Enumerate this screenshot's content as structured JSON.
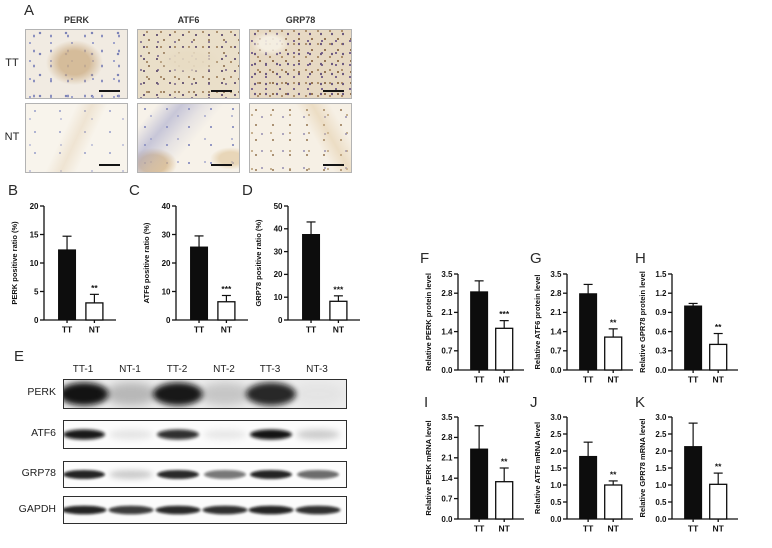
{
  "panels": {
    "A": "A",
    "B": "B",
    "C": "C",
    "D": "D",
    "E": "E",
    "F": "F",
    "G": "G",
    "H": "H",
    "I": "I",
    "J": "J",
    "K": "K"
  },
  "panel_a": {
    "columns": [
      "PERK",
      "ATF6",
      "GRP78"
    ],
    "rows": [
      "TT",
      "NT"
    ]
  },
  "panel_e": {
    "lanes": [
      "TT-1",
      "NT-1",
      "TT-2",
      "NT-2",
      "TT-3",
      "NT-3"
    ],
    "rows": [
      {
        "name": "PERK",
        "intensities": [
          0.97,
          0.42,
          0.95,
          0.3,
          0.88,
          0.06
        ]
      },
      {
        "name": "ATF6",
        "intensities": [
          0.95,
          0.16,
          0.85,
          0.14,
          0.97,
          0.34
        ]
      },
      {
        "name": "GRP78",
        "intensities": [
          0.9,
          0.35,
          0.88,
          0.55,
          0.9,
          0.6
        ]
      },
      {
        "name": "GAPDH",
        "intensities": [
          0.9,
          0.8,
          0.88,
          0.85,
          0.9,
          0.85
        ]
      }
    ]
  },
  "colors": {
    "tt_bar": "#0d0d0d",
    "nt_bar": "#ffffff",
    "axis": "#111111"
  },
  "chart_data": [
    {
      "id": "B",
      "type": "bar",
      "ylabel": "PERK positive ratio (%)",
      "categories": [
        "TT",
        "NT"
      ],
      "values": [
        12.3,
        3.0
      ],
      "error_top": [
        14.7,
        4.5
      ],
      "ylim": [
        0,
        20
      ],
      "yticks": [
        "0",
        "5",
        "10",
        "15",
        "20"
      ],
      "sig": {
        "label": "**",
        "index": 1
      },
      "size": "lg"
    },
    {
      "id": "C",
      "type": "bar",
      "ylabel": "ATF6 positive ratio (%)",
      "categories": [
        "TT",
        "NT"
      ],
      "values": [
        25.6,
        6.4
      ],
      "error_top": [
        29.5,
        8.6
      ],
      "ylim": [
        0,
        40
      ],
      "yticks": [
        "0",
        "10",
        "20",
        "30",
        "40"
      ],
      "sig": {
        "label": "***",
        "index": 1
      },
      "size": "lg"
    },
    {
      "id": "D",
      "type": "bar",
      "ylabel": "GRP78 positive ratio (%)",
      "categories": [
        "TT",
        "NT"
      ],
      "values": [
        37.5,
        8.2
      ],
      "error_top": [
        43.0,
        10.6
      ],
      "ylim": [
        0,
        50
      ],
      "yticks": [
        "0",
        "10",
        "20",
        "30",
        "40",
        "50"
      ],
      "sig": {
        "label": "***",
        "index": 1
      },
      "size": "lg"
    },
    {
      "id": "F",
      "type": "bar",
      "ylabel": "Relative PERK protein level",
      "categories": [
        "TT",
        "NT"
      ],
      "values": [
        2.85,
        1.52
      ],
      "error_top": [
        3.25,
        1.8
      ],
      "ylim": [
        0,
        3.5
      ],
      "yticks": [
        "0.0",
        "0.7",
        "1.4",
        "2.1",
        "2.8",
        "3.5"
      ],
      "sig": {
        "label": "***",
        "index": 1
      },
      "size": "sm"
    },
    {
      "id": "G",
      "type": "bar",
      "ylabel": "Relative ATF6 protein level",
      "categories": [
        "TT",
        "NT"
      ],
      "values": [
        2.78,
        1.2
      ],
      "error_top": [
        3.12,
        1.5
      ],
      "ylim": [
        0,
        3.5
      ],
      "yticks": [
        "0.0",
        "0.7",
        "1.4",
        "2.1",
        "2.8",
        "3.5"
      ],
      "sig": {
        "label": "**",
        "index": 1
      },
      "size": "sm"
    },
    {
      "id": "H",
      "type": "bar",
      "ylabel": "Relative GPR78 protein level",
      "categories": [
        "TT",
        "NT"
      ],
      "values": [
        1.0,
        0.4
      ],
      "error_top": [
        1.04,
        0.57
      ],
      "ylim": [
        0,
        1.5
      ],
      "yticks": [
        "0.0",
        "0.3",
        "0.6",
        "0.9",
        "1.2",
        "1.5"
      ],
      "sig": {
        "label": "**",
        "index": 1
      },
      "size": "sm"
    },
    {
      "id": "I",
      "type": "bar",
      "ylabel": "Relative PERK mRNA level",
      "categories": [
        "TT",
        "NT"
      ],
      "values": [
        2.4,
        1.28
      ],
      "error_top": [
        3.2,
        1.75
      ],
      "ylim": [
        0,
        3.5
      ],
      "yticks": [
        "0.0",
        "0.7",
        "1.4",
        "2.1",
        "2.8",
        "3.5"
      ],
      "sig": {
        "label": "**",
        "index": 1
      },
      "size": "md"
    },
    {
      "id": "J",
      "type": "bar",
      "ylabel": "Relative ATF6 mRNA level",
      "categories": [
        "TT",
        "NT"
      ],
      "values": [
        1.84,
        1.0
      ],
      "error_top": [
        2.26,
        1.12
      ],
      "ylim": [
        0,
        3.0
      ],
      "yticks": [
        "0.0",
        "0.5",
        "1.0",
        "1.5",
        "2.0",
        "2.5",
        "3.0"
      ],
      "sig": {
        "label": "**",
        "index": 1
      },
      "size": "md"
    },
    {
      "id": "K",
      "type": "bar",
      "ylabel": "Relative GPR78 mRNA level",
      "categories": [
        "TT",
        "NT"
      ],
      "values": [
        2.13,
        1.02
      ],
      "error_top": [
        2.82,
        1.35
      ],
      "ylim": [
        0,
        3.0
      ],
      "yticks": [
        "0.0",
        "0.5",
        "1.0",
        "1.5",
        "2.0",
        "2.5",
        "3.0"
      ],
      "sig": {
        "label": "**",
        "index": 1
      },
      "size": "md"
    }
  ]
}
